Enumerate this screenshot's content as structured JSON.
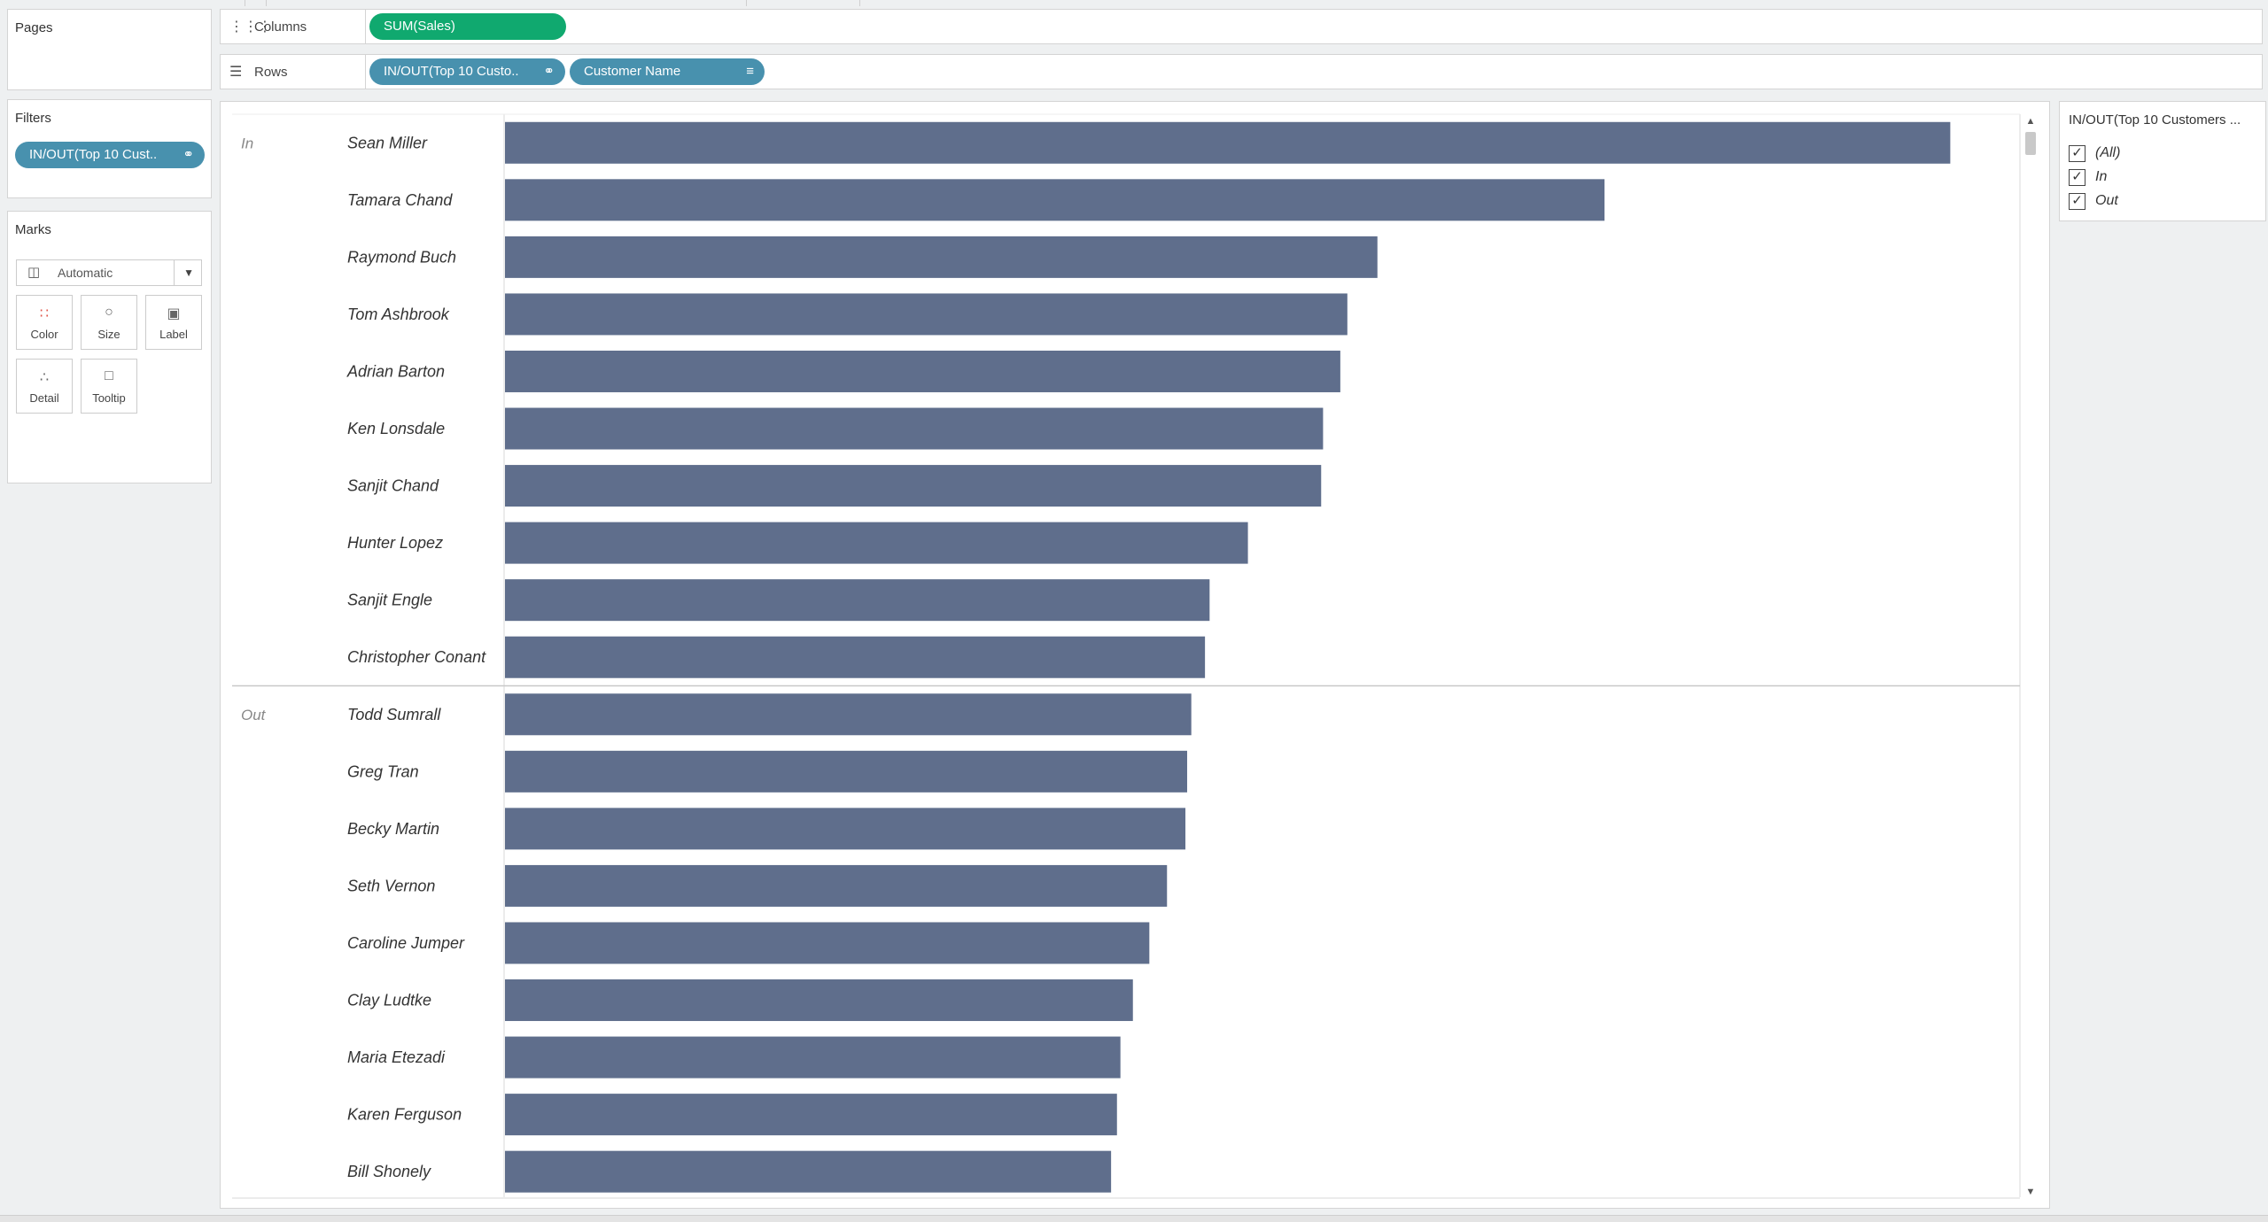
{
  "pages_card": {
    "title": "Pages"
  },
  "filters_card": {
    "title": "Filters",
    "filter_pill": "IN/OUT(Top 10 Cust.."
  },
  "marks_card": {
    "title": "Marks",
    "mark_type": "Automatic",
    "buttons": [
      "Color",
      "Size",
      "Label",
      "Detail",
      "Tooltip"
    ]
  },
  "columns_shelf": {
    "label": "Columns",
    "pill": "SUM(Sales)"
  },
  "rows_shelf": {
    "label": "Rows",
    "pills": [
      "IN/OUT(Top 10 Custo..",
      "Customer Name"
    ]
  },
  "quick_filter": {
    "title": "IN/OUT(Top 10 Customers ...",
    "items": [
      {
        "label": "(All)",
        "checked": true
      },
      {
        "label": "In",
        "checked": true
      },
      {
        "label": "Out",
        "checked": true
      }
    ]
  },
  "colors": {
    "bar": "#5f6e8c",
    "pill_blue": "#4891ae",
    "pill_green": "#10a96f"
  },
  "chart_data": {
    "type": "bar",
    "orientation": "horizontal",
    "groups": [
      {
        "label": "In",
        "categories": [
          "Sean Miller",
          "Tamara Chand",
          "Raymond Buch",
          "Tom Ashbrook",
          "Adrian Barton",
          "Ken Lonsdale",
          "Sanjit Chand",
          "Hunter Lopez",
          "Sanjit Engle",
          "Christopher Conant"
        ],
        "values": [
          25043,
          19052,
          15117,
          14596,
          14474,
          14175,
          14142,
          12873,
          12209,
          12129
        ]
      },
      {
        "label": "Out",
        "categories": [
          "Todd Sumrall",
          "Greg Tran",
          "Becky Martin",
          "Seth Vernon",
          "Caroline Jumper",
          "Clay Ludtke",
          "Maria Etezadi",
          "Karen Ferguson",
          "Bill Shonely"
        ],
        "values": [
          11892,
          11820,
          11790,
          11471,
          11165,
          10880,
          10664,
          10604,
          10502
        ]
      }
    ],
    "xlim": [
      0,
      26250
    ],
    "grid": false
  }
}
